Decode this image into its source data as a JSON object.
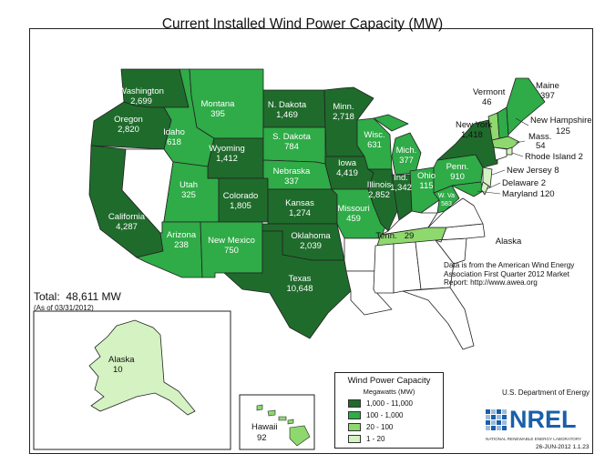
{
  "title": "Current Installed Wind Power Capacity (MW)",
  "colors": {
    "tier1": "#1f6b2c",
    "tier2": "#2fab47",
    "tier3": "#8ed86e",
    "tier4": "#d4f2c2",
    "none": "#ffffff",
    "border": "#222222"
  },
  "states": {
    "washington": {
      "name": "Washington",
      "value": "2,699",
      "tier": 1
    },
    "oregon": {
      "name": "Oregon",
      "value": "2,820",
      "tier": 1
    },
    "california": {
      "name": "California",
      "value": "4,287",
      "tier": 1
    },
    "idaho": {
      "name": "Idaho",
      "value": "618",
      "tier": 2
    },
    "montana": {
      "name": "Montana",
      "value": "395",
      "tier": 2
    },
    "wyoming": {
      "name": "Wyoming",
      "value": "1,412",
      "tier": 1
    },
    "utah": {
      "name": "Utah",
      "value": "325",
      "tier": 2
    },
    "arizona": {
      "name": "Arizona",
      "value": "238",
      "tier": 2
    },
    "colorado": {
      "name": "Colorado",
      "value": "1,805",
      "tier": 1
    },
    "new_mexico": {
      "name": "New Mexico",
      "value": "750",
      "tier": 2
    },
    "n_dakota": {
      "name": "N. Dakota",
      "value": "1,469",
      "tier": 1
    },
    "s_dakota": {
      "name": "S. Dakota",
      "value": "784",
      "tier": 2
    },
    "nebraska": {
      "name": "Nebraska",
      "value": "337",
      "tier": 2
    },
    "kansas": {
      "name": "Kansas",
      "value": "1,274",
      "tier": 1
    },
    "oklahoma": {
      "name": "Oklahoma",
      "value": "2,039",
      "tier": 1
    },
    "texas": {
      "name": "Texas",
      "value": "10,648",
      "tier": 1
    },
    "minn": {
      "name": "Minn.",
      "value": "2,718",
      "tier": 1
    },
    "iowa": {
      "name": "Iowa",
      "value": "4,419",
      "tier": 1
    },
    "missouri": {
      "name": "Missouri",
      "value": "459",
      "tier": 2
    },
    "wisc": {
      "name": "Wisc.",
      "value": "631",
      "tier": 2
    },
    "illinois": {
      "name": "Illinois",
      "value": "2,852",
      "tier": 1
    },
    "mich": {
      "name": "Mich.",
      "value": "377",
      "tier": 2
    },
    "ind": {
      "name": "Ind.",
      "value": "1,342",
      "tier": 1
    },
    "ohio": {
      "name": "Ohio",
      "value": "115",
      "tier": 2
    },
    "tenn": {
      "name": "Tenn.",
      "value": "29",
      "tier": 3
    },
    "w_va": {
      "name": "W. Va",
      "value": "583",
      "tier": 2
    },
    "penn": {
      "name": "Penn.",
      "value": "910",
      "tier": 2
    },
    "new_york": {
      "name": "New York",
      "value": "1,418",
      "tier": 1
    },
    "vermont": {
      "name": "Vermont",
      "value": "46",
      "tier": 3
    },
    "maine": {
      "name": "Maine",
      "value": "397",
      "tier": 2
    },
    "new_hampshire": {
      "name": "New Hampshire",
      "value": "125",
      "tier": 2
    },
    "mass": {
      "name": "Mass.",
      "value": "54",
      "tier": 3
    },
    "rhode_island": {
      "label": "Rhode Island 2",
      "tier": 4
    },
    "new_jersey": {
      "label": "New Jersey 8",
      "tier": 4
    },
    "delaware": {
      "label": "Delaware 2",
      "tier": 4
    },
    "maryland": {
      "label": "Maryland 120",
      "tier": 2
    },
    "alaska": {
      "name": "Alaska",
      "value": "10",
      "tier": 4
    },
    "hawaii": {
      "name": "Hawaii",
      "value": "92",
      "tier": 3
    }
  },
  "total": {
    "label": "Total:",
    "value": "48,611 MW"
  },
  "as_of": "(As of 03/31/2012)",
  "source_note": "Data is from the American Wind Energy Association First Quarter 2012 Market Report: http://www.awea.org",
  "legend": {
    "title": "Wind Power Capacity",
    "subtitle": "Megawatts (MW)",
    "items": [
      {
        "label": "1,000 - 11,000",
        "tier": 1
      },
      {
        "label": "100 - 1,000",
        "tier": 2
      },
      {
        "label": "20 - 100",
        "tier": 3
      },
      {
        "label": "1 - 20",
        "tier": 4
      }
    ]
  },
  "agency": "U.S. Department of Energy",
  "logo": {
    "text": "NREL",
    "subtitle": "NATIONAL RENEWABLE ENERGY LABORATORY",
    "date_code": "26-JUN-2012 1.1.23"
  }
}
